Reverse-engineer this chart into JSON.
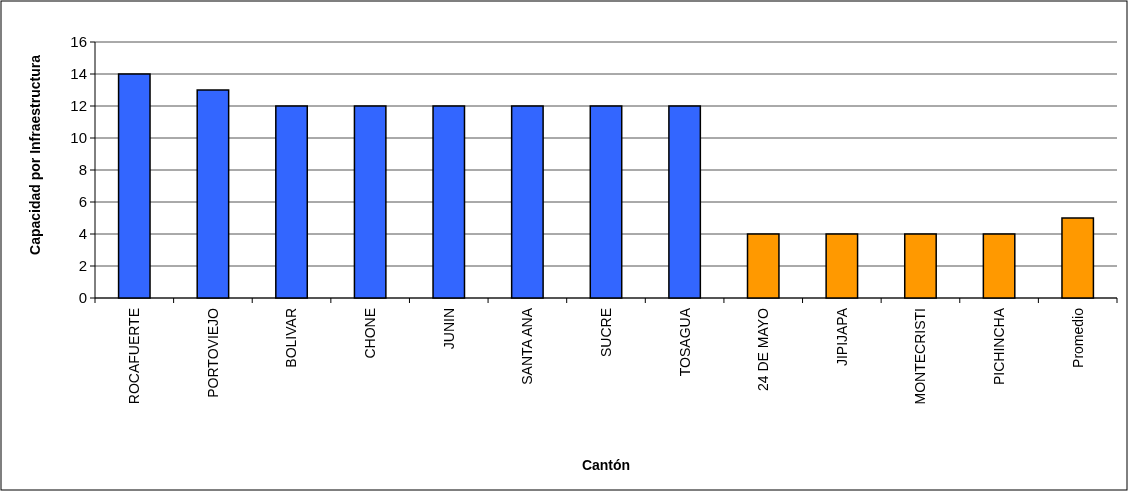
{
  "chart_data": {
    "type": "bar",
    "xlabel": "Cantón",
    "ylabel": "Capacidad por Infraestructura",
    "categories": [
      "ROCAFUERTE",
      "PORTOVIEJO",
      "BOLIVAR",
      "CHONE",
      "JUNIN",
      "SANTA ANA",
      "SUCRE",
      "TOSAGUA",
      "24 DE MAYO",
      "JIPIJAPA",
      "MONTECRISTI",
      "PICHINCHA",
      "Promedio"
    ],
    "values": [
      14,
      13,
      12,
      12,
      12,
      12,
      12,
      12,
      4,
      4,
      4,
      4,
      5
    ],
    "colors": [
      "#3366ff",
      "#3366ff",
      "#3366ff",
      "#3366ff",
      "#3366ff",
      "#3366ff",
      "#3366ff",
      "#3366ff",
      "#ff9900",
      "#ff9900",
      "#ff9900",
      "#ff9900",
      "#ff9900"
    ],
    "ylim": [
      0,
      16
    ],
    "yticks": [
      0,
      2,
      4,
      6,
      8,
      10,
      12,
      14,
      16
    ],
    "grid": "y"
  }
}
